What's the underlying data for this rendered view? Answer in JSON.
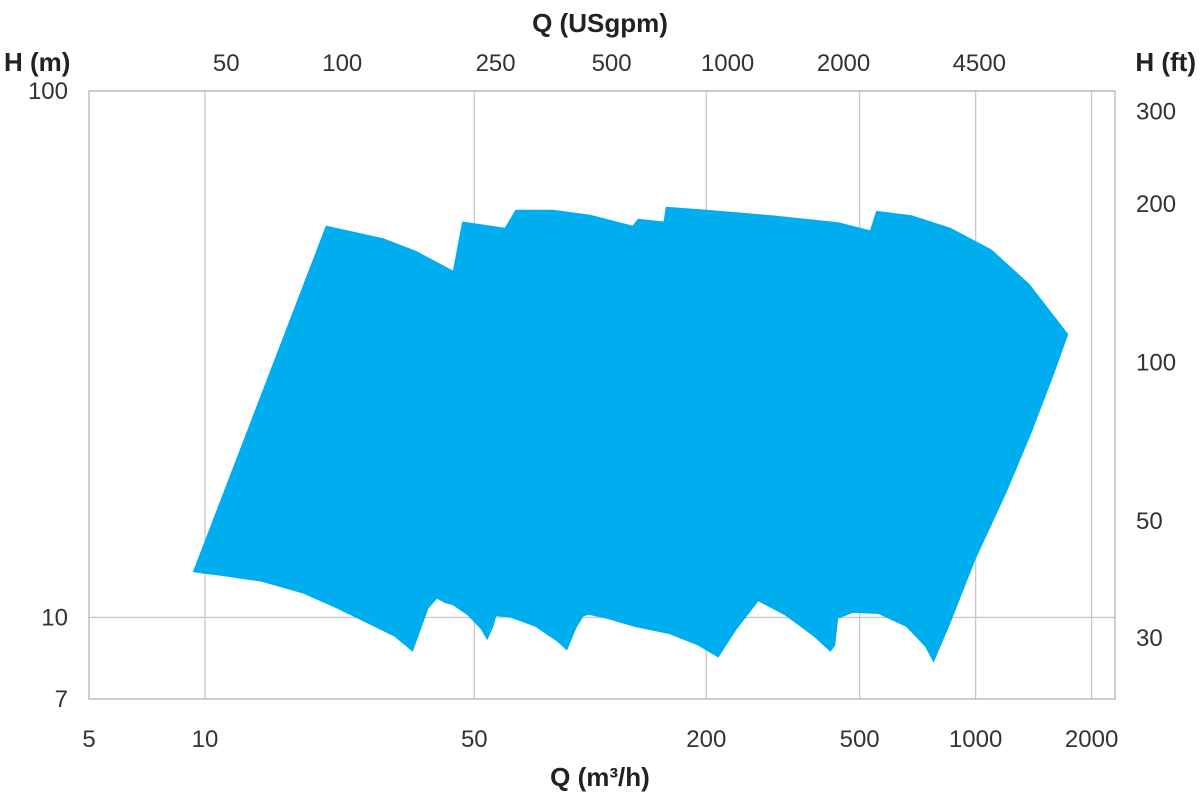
{
  "chart_data": {
    "type": "area",
    "title": "",
    "xlabel": "Q (m³/h)",
    "x2label": "Q (USgpm)",
    "ylabel": "H (m)",
    "y2label": "H (ft)",
    "x_scale": "log",
    "y_scale": "log",
    "xlim": [
      5,
      2300
    ],
    "ylim": [
      7,
      100
    ],
    "x_ticks": [
      {
        "value": 5,
        "label": "5"
      },
      {
        "value": 10,
        "label": "10"
      },
      {
        "value": 50,
        "label": "50"
      },
      {
        "value": 200,
        "label": "200"
      },
      {
        "value": 500,
        "label": "500"
      },
      {
        "value": 1000,
        "label": "1000"
      },
      {
        "value": 2000,
        "label": "2000"
      }
    ],
    "x2_ticks": [
      {
        "value": 50,
        "label": "50"
      },
      {
        "value": 100,
        "label": "100"
      },
      {
        "value": 250,
        "label": "250"
      },
      {
        "value": 500,
        "label": "500"
      },
      {
        "value": 1000,
        "label": "1000"
      },
      {
        "value": 2000,
        "label": "2000"
      },
      {
        "value": 4500,
        "label": "4500"
      }
    ],
    "x2_factor_usgpm_per_m3h": 4.4029,
    "y_ticks": [
      {
        "value": 7,
        "label": "7"
      },
      {
        "value": 10,
        "label": "10"
      },
      {
        "value": 100,
        "label": "100"
      }
    ],
    "y2_ticks": [
      {
        "value": 30,
        "label": "30"
      },
      {
        "value": 50,
        "label": "50"
      },
      {
        "value": 100,
        "label": "100"
      },
      {
        "value": 200,
        "label": "200"
      },
      {
        "value": 300,
        "label": "300"
      }
    ],
    "y2_factor_ft_per_m": 3.28084,
    "grid": {
      "x": true,
      "y": true
    },
    "fill_color": "#00aeef",
    "series": [
      {
        "points": [
          [
            9.3,
            12.2
          ],
          [
            20.6,
            55.5
          ],
          [
            29,
            52.5
          ],
          [
            35.3,
            49.7
          ],
          [
            44,
            45.6
          ],
          [
            46.5,
            56.5
          ],
          [
            60,
            55
          ],
          [
            64,
            59.5
          ],
          [
            80,
            59.5
          ],
          [
            100,
            58.2
          ],
          [
            128.7,
            55.5
          ],
          [
            133,
            57.2
          ],
          [
            155,
            56.5
          ],
          [
            157,
            60.3
          ],
          [
            200,
            59.5
          ],
          [
            300,
            58
          ],
          [
            440,
            56.3
          ],
          [
            532,
            54.4
          ],
          [
            552,
            59.2
          ],
          [
            680,
            58.1
          ],
          [
            860,
            55
          ],
          [
            1100,
            50
          ],
          [
            1380,
            43
          ],
          [
            1740,
            34.5
          ],
          [
            1600,
            29.1
          ],
          [
            1400,
            22.5
          ],
          [
            1200,
            17.2
          ],
          [
            1000,
            12.9
          ],
          [
            860,
            9.75
          ],
          [
            778,
            8.2
          ],
          [
            740,
            8.8
          ],
          [
            660,
            9.6
          ],
          [
            560,
            10.15
          ],
          [
            480,
            10.2
          ],
          [
            440,
            9.95
          ],
          [
            432,
            8.85
          ],
          [
            420,
            8.6
          ],
          [
            380,
            9.2
          ],
          [
            320,
            10.1
          ],
          [
            273,
            10.73
          ],
          [
            239,
            9.46
          ],
          [
            215,
            8.39
          ],
          [
            190,
            8.85
          ],
          [
            160,
            9.3
          ],
          [
            130,
            9.6
          ],
          [
            110,
            9.95
          ],
          [
            99,
            10.12
          ],
          [
            96,
            10.05
          ],
          [
            92,
            9.55
          ],
          [
            87,
            8.65
          ],
          [
            82,
            9.0
          ],
          [
            72,
            9.6
          ],
          [
            62,
            10.0
          ],
          [
            57,
            10.05
          ],
          [
            56,
            9.6
          ],
          [
            54,
            9.05
          ],
          [
            52,
            9.5
          ],
          [
            48,
            10.1
          ],
          [
            44,
            10.55
          ],
          [
            42,
            10.65
          ],
          [
            40,
            10.85
          ],
          [
            38,
            10.4
          ],
          [
            34.6,
            8.6
          ],
          [
            31,
            9.2
          ],
          [
            26,
            9.8
          ],
          [
            22,
            10.4
          ],
          [
            18,
            11.1
          ],
          [
            14,
            11.7
          ],
          [
            11,
            12.0
          ],
          [
            10,
            12.1
          ]
        ]
      }
    ]
  }
}
